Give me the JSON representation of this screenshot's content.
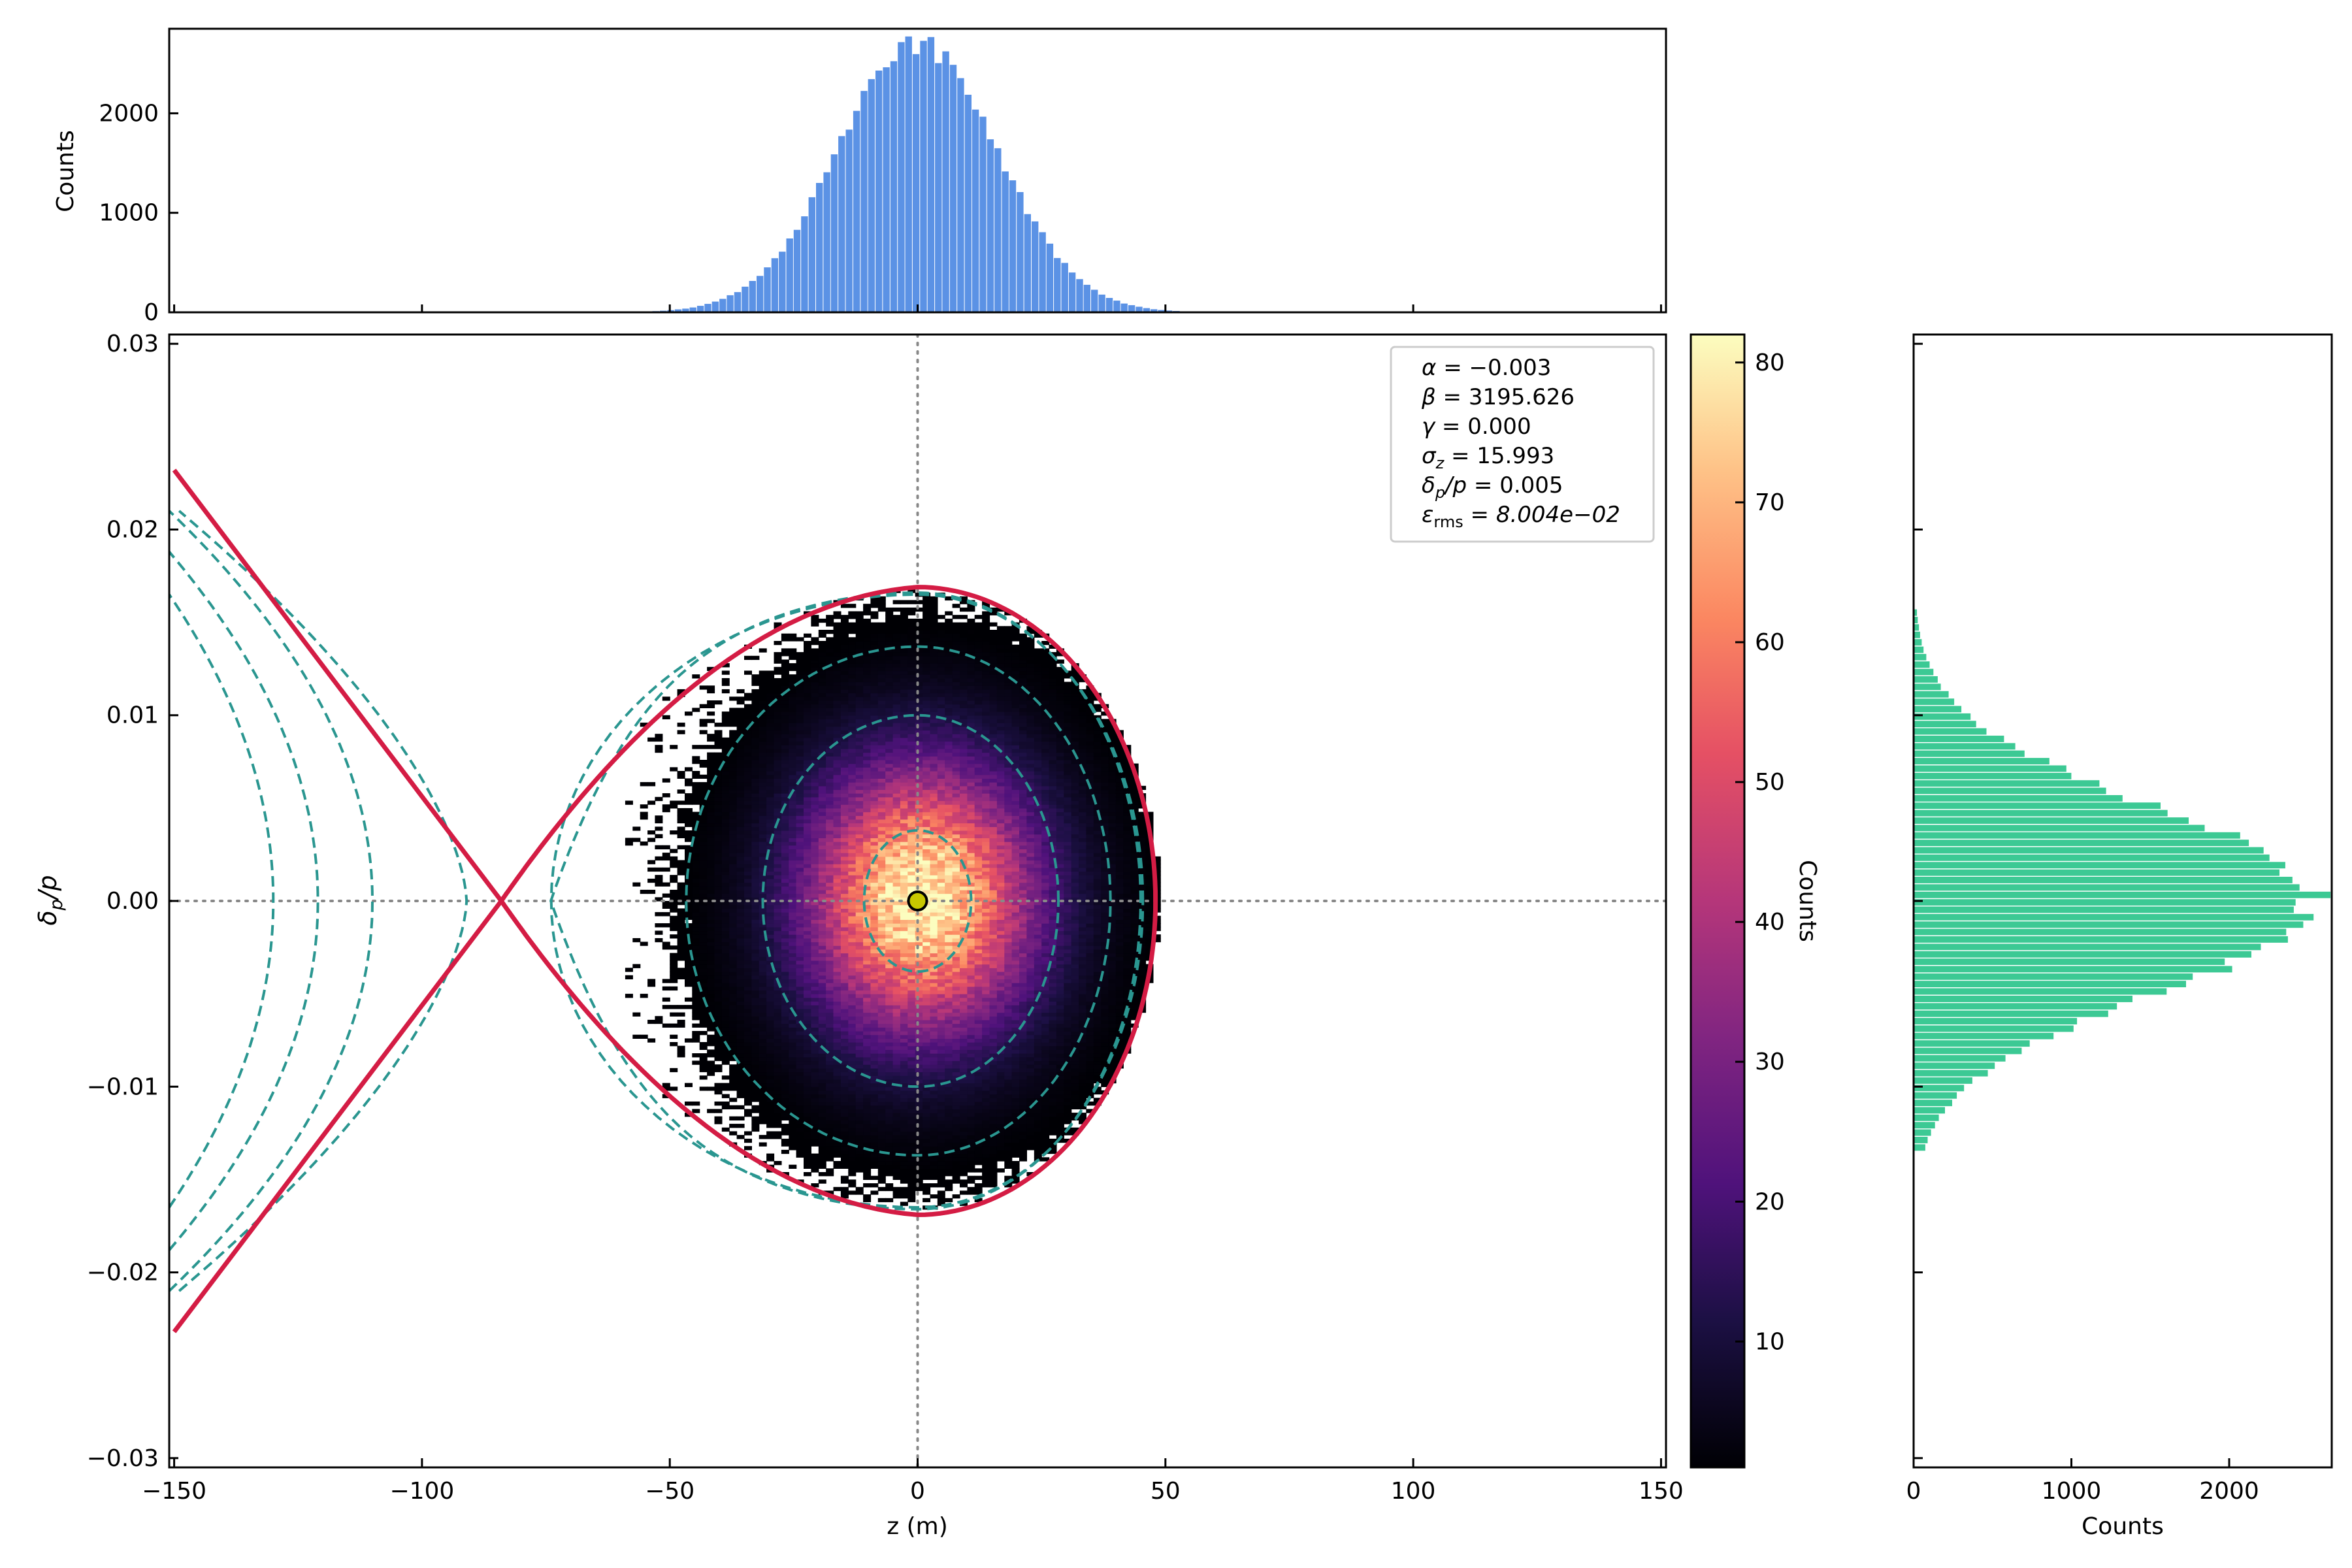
{
  "chart_data": [
    {
      "type": "heatmap",
      "panel": "main",
      "xlabel": "z (m)",
      "ylabel": "δp/p",
      "ylabel_parts": {
        "main": "δ",
        "sub": "p",
        "rest": "/p"
      },
      "xlim": [
        -151,
        151
      ],
      "ylim": [
        -0.0305,
        0.0305
      ],
      "x_ticks": [
        -150,
        -100,
        -50,
        0,
        50,
        100,
        150
      ],
      "x_tick_labels": [
        "−150",
        "−100",
        "−50",
        "0",
        "50",
        "100",
        "150"
      ],
      "y_ticks": [
        -0.03,
        -0.02,
        -0.01,
        0.0,
        0.01,
        0.02,
        0.03
      ],
      "y_tick_labels": [
        "−0.03",
        "−0.02",
        "−0.01",
        "0.00",
        "0.01",
        "0.02",
        "0.03"
      ],
      "crosshair": {
        "x": 0,
        "y": 0,
        "style": "dotted",
        "color": "#888888"
      },
      "center_marker": {
        "x": 0,
        "y": 0,
        "color": "#c8c800"
      },
      "distribution": {
        "center_z": 0,
        "sigma_z": 15.993,
        "center_dp": 0,
        "sigma_dp": 0.005,
        "bin_z": 1.5,
        "bin_dp": 0.0002,
        "max_count": 82
      },
      "separatrix": {
        "color": "#d41c44",
        "x_point_z": -84,
        "right_extent_z": 48,
        "max_dp": 0.0169,
        "open_branch_dp_at_edge": 0.0232
      },
      "contours_inner_dp": [
        0.0038,
        0.01,
        0.0137,
        0.0165
      ],
      "contours_outer_dp_at_edge": [
        0.0165,
        0.0188,
        0.021
      ],
      "contour_color": "#2a9690",
      "grid": false,
      "legend_position": "top-right",
      "annotation": {
        "alpha": {
          "sym": "α",
          "value": "−0.003"
        },
        "beta": {
          "sym": "β",
          "value": "3195.626"
        },
        "gamma": {
          "sym": "γ",
          "value": "0.000"
        },
        "sigma_z": {
          "sym": "σ",
          "sub": "z",
          "value": "15.993"
        },
        "delta_p": {
          "sym": "δ",
          "sub": "p",
          "rest": "/p",
          "value": "0.005"
        },
        "emittance": {
          "sym": "ε",
          "sub": "rms",
          "value": "8.004e−02"
        }
      }
    },
    {
      "type": "bar",
      "panel": "top-histogram",
      "ylabel": "Counts",
      "xlim": [
        -151,
        151
      ],
      "ylim": [
        0,
        2850
      ],
      "y_ticks": [
        0,
        1000,
        2000
      ],
      "y_tick_labels": [
        "0",
        "1000",
        "2000"
      ],
      "color": "#5b92e5",
      "bin_width": 1.5,
      "center": 0,
      "sigma": 15.993,
      "peak": 2700
    },
    {
      "type": "bar",
      "panel": "right-histogram",
      "orientation": "horizontal",
      "xlabel": "Counts",
      "xlim": [
        0,
        2650
      ],
      "x_ticks": [
        0,
        1000,
        2000
      ],
      "x_tick_labels": [
        "0",
        "1000",
        "2000"
      ],
      "color": "#3cc994",
      "bin_width": 0.0004,
      "center": 0,
      "sigma": 0.005,
      "peak": 2530
    },
    {
      "type": "colorbar",
      "label": "Counts",
      "range": [
        1,
        82
      ],
      "ticks": [
        10,
        20,
        30,
        40,
        50,
        60,
        70,
        80
      ],
      "tick_labels": [
        "10",
        "20",
        "30",
        "40",
        "50",
        "60",
        "70",
        "80"
      ],
      "colormap": "magma"
    }
  ]
}
